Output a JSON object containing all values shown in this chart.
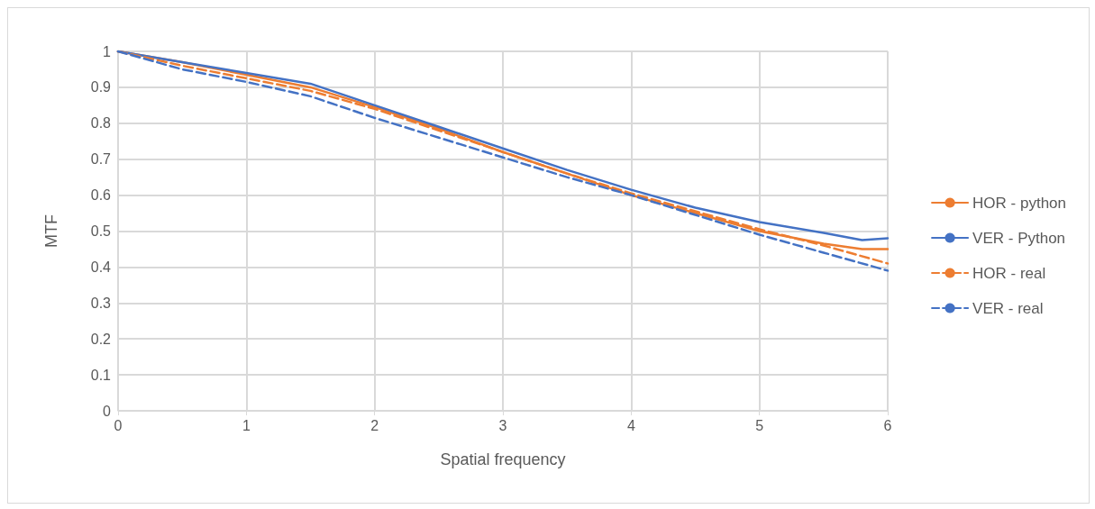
{
  "chart_data": {
    "type": "line",
    "xlabel": "Spatial frequency",
    "ylabel": "MTF",
    "xlim": [
      0,
      6
    ],
    "xticks": [
      0,
      1,
      2,
      3,
      4,
      5,
      6
    ],
    "ylim": [
      0,
      1
    ],
    "yticks": [
      0,
      0.1,
      0.2,
      0.3,
      0.4,
      0.5,
      0.6,
      0.7,
      0.8,
      0.9,
      1
    ],
    "grid": true,
    "legend": "right",
    "marker": "none",
    "series": [
      {
        "name": "HOR - python",
        "color": "#ed7d31",
        "line_style": "solid",
        "x": [
          0,
          0.5,
          1,
          1.5,
          2,
          2.5,
          3,
          3.5,
          4,
          4.5,
          5,
          5.5,
          5.8,
          6
        ],
        "values": [
          1,
          0.97,
          0.935,
          0.9,
          0.845,
          0.785,
          0.72,
          0.66,
          0.6,
          0.55,
          0.5,
          0.465,
          0.45,
          0.45
        ]
      },
      {
        "name": "VER - Python",
        "color": "#4472c4",
        "line_style": "solid",
        "x": [
          0,
          0.5,
          1,
          1.5,
          2,
          2.5,
          3,
          3.5,
          4,
          4.5,
          5,
          5.5,
          5.8,
          6
        ],
        "values": [
          1,
          0.97,
          0.94,
          0.91,
          0.85,
          0.79,
          0.73,
          0.67,
          0.615,
          0.565,
          0.525,
          0.495,
          0.475,
          0.48
        ]
      },
      {
        "name": "HOR - real",
        "color": "#ed7d31",
        "line_style": "dashed",
        "x": [
          0,
          0.5,
          1,
          1.5,
          2,
          2.5,
          3,
          3.5,
          4,
          4.5,
          5,
          5.5,
          6
        ],
        "values": [
          1,
          0.96,
          0.925,
          0.89,
          0.84,
          0.78,
          0.72,
          0.66,
          0.605,
          0.555,
          0.505,
          0.46,
          0.41
        ]
      },
      {
        "name": "VER - real",
        "color": "#4472c4",
        "line_style": "dashed",
        "x": [
          0,
          0.5,
          1,
          1.5,
          2,
          2.5,
          3,
          3.5,
          4,
          4.5,
          5,
          5.5,
          6
        ],
        "values": [
          1,
          0.95,
          0.915,
          0.875,
          0.815,
          0.76,
          0.705,
          0.65,
          0.6,
          0.545,
          0.49,
          0.44,
          0.39
        ]
      }
    ]
  }
}
